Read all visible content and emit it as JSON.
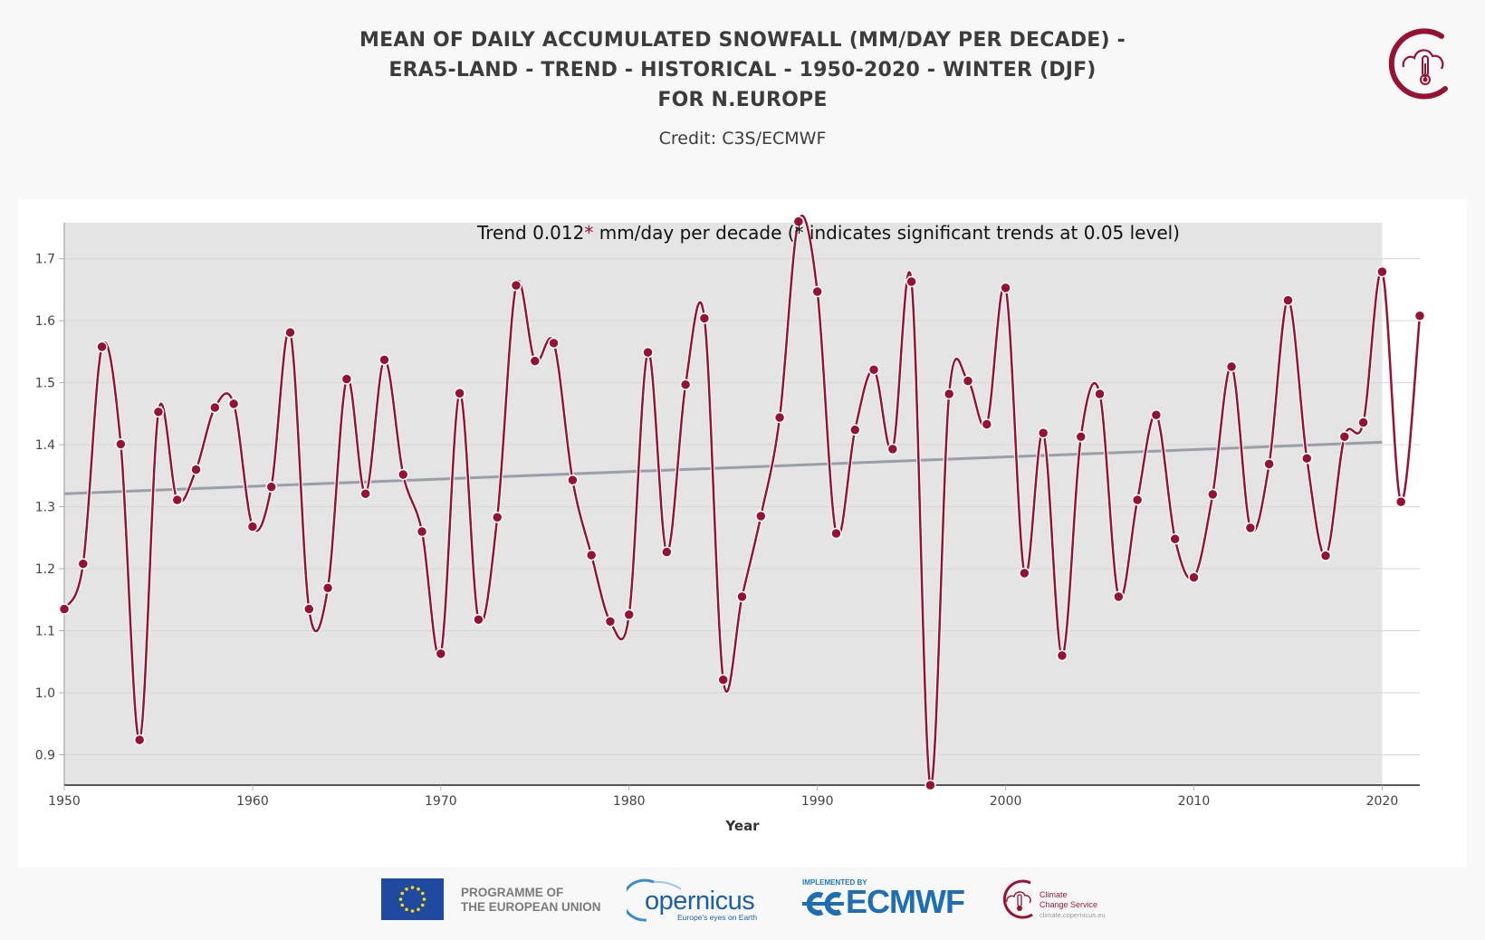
{
  "header": {
    "title_lines": [
      "MEAN OF DAILY ACCUMULATED SNOWFALL (MM/DAY PER DECADE) -",
      "ERA5-LAND - TREND - HISTORICAL - 1950-2020 - WINTER (DJF)",
      "FOR N.EUROPE"
    ],
    "credit": "Credit: C3S/ECMWF",
    "logo_icon": "c3s-cloud-thermometer-icon"
  },
  "colors": {
    "series": "#961233",
    "trend": "#9a9ea8",
    "plot_bg": "#e4e4e4",
    "asterisk": "#961233"
  },
  "chart_data": {
    "type": "line",
    "title": "",
    "annotation": {
      "prefix": "Trend 0.012",
      "asterisk": "*",
      "suffix": " mm/day per decade (* indicates significant trends at 0.05 level)"
    },
    "xlabel": "Year",
    "ylabel": "",
    "xlim": [
      1950,
      2022
    ],
    "ylim": [
      0.851,
      1.758
    ],
    "shaded_xrange": [
      1950,
      2020
    ],
    "grid": true,
    "legend": "none",
    "x_ticks": [
      1950,
      1960,
      1970,
      1980,
      1990,
      2000,
      2010,
      2020
    ],
    "y_ticks": [
      0.9,
      1.0,
      1.1,
      1.2,
      1.3,
      1.4,
      1.5,
      1.6,
      1.7
    ],
    "y_tick_labels": [
      "0.9",
      "1.0",
      "1.1",
      "1.2",
      "1.3",
      "1.4",
      "1.5",
      "1.6",
      "1.7"
    ],
    "x": [
      1950,
      1951,
      1952,
      1953,
      1954,
      1955,
      1956,
      1957,
      1958,
      1959,
      1960,
      1961,
      1962,
      1963,
      1964,
      1965,
      1966,
      1967,
      1968,
      1969,
      1970,
      1971,
      1972,
      1973,
      1974,
      1975,
      1976,
      1977,
      1978,
      1979,
      1980,
      1981,
      1982,
      1983,
      1984,
      1985,
      1986,
      1987,
      1988,
      1989,
      1990,
      1991,
      1992,
      1993,
      1994,
      1995,
      1996,
      1997,
      1998,
      1999,
      2000,
      2001,
      2002,
      2003,
      2004,
      2005,
      2006,
      2007,
      2008,
      2009,
      2010,
      2011,
      2012,
      2013,
      2014,
      2015,
      2016,
      2017,
      2018,
      2019,
      2020,
      2021,
      2022
    ],
    "series": [
      {
        "name": "Snowfall",
        "values": [
          1.135,
          1.208,
          1.558,
          1.401,
          0.924,
          1.453,
          1.311,
          1.36,
          1.46,
          1.466,
          1.268,
          1.332,
          1.581,
          1.135,
          1.169,
          1.506,
          1.321,
          1.537,
          1.352,
          1.26,
          1.063,
          1.483,
          1.118,
          1.283,
          1.657,
          1.535,
          1.564,
          1.343,
          1.222,
          1.115,
          1.126,
          1.549,
          1.227,
          1.497,
          1.604,
          1.021,
          1.155,
          1.285,
          1.444,
          1.76,
          1.647,
          1.257,
          1.424,
          1.521,
          1.393,
          1.663,
          0.851,
          1.482,
          1.503,
          1.433,
          1.653,
          1.193,
          1.419,
          1.06,
          1.413,
          1.482,
          1.155,
          1.311,
          1.448,
          1.248,
          1.186,
          1.32,
          1.526,
          1.266,
          1.369,
          1.633,
          1.378,
          1.221,
          1.413,
          1.436,
          1.679,
          1.308,
          1.608
        ]
      },
      {
        "name": "Trend",
        "x": [
          1950,
          2020
        ],
        "values": [
          1.321,
          1.404
        ]
      }
    ]
  },
  "footer": {
    "eu_text_lines": [
      "PROGRAMME OF",
      "THE EUROPEAN UNION"
    ],
    "copernicus_word": "opernicus",
    "copernicus_sub": "Europe's eyes on Earth",
    "implemented_by": "IMPLEMENTED BY",
    "ecmwf_word": "ECMWF",
    "c3s_lines": [
      "Climate",
      "Change Service"
    ],
    "c3s_url": "climate.copernicus.eu"
  }
}
